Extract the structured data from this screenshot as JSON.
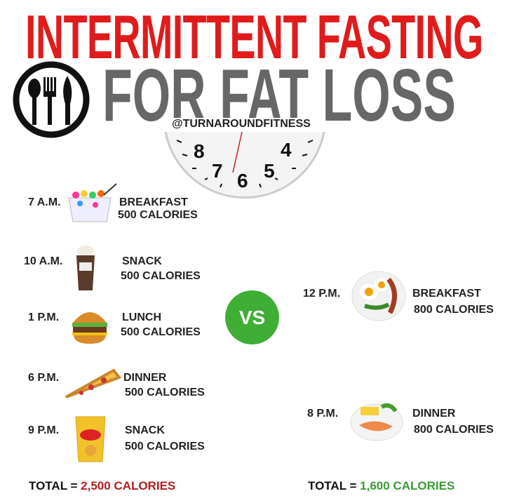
{
  "header": {
    "title_line1": "INTERMITTENT FASTING",
    "title_line2": "FOR FAT LOSS",
    "handle": "@TURNAROUNDFITNESS"
  },
  "clock": {
    "numbers": [
      "8",
      "4",
      "7",
      "6",
      "5"
    ]
  },
  "left_plan": {
    "meals": [
      {
        "time": "7 A.M.",
        "meal": "BREAKFAST",
        "calories": "500 CALORIES",
        "icon": "cereal-bowl-icon"
      },
      {
        "time": "10 A.M.",
        "meal": "SNACK",
        "calories": "500 CALORIES",
        "icon": "iced-coffee-icon"
      },
      {
        "time": "1 P.M.",
        "meal": "LUNCH",
        "calories": "500 CALORIES",
        "icon": "burger-icon"
      },
      {
        "time": "6 P.M.",
        "meal": "DINNER",
        "calories": "500 CALORIES",
        "icon": "pizza-slice-icon"
      },
      {
        "time": "9 P.M.",
        "meal": "SNACK",
        "calories": "500 CALORIES",
        "icon": "chips-bag-icon"
      }
    ],
    "total_label": "TOTAL = ",
    "total_value": "2,500 CALORIES",
    "total_color": "#b01e1e"
  },
  "vs_label": "VS",
  "right_plan": {
    "meals": [
      {
        "time": "12 P.M.",
        "meal": "BREAKFAST",
        "calories": "800 CALORIES",
        "icon": "eggs-bacon-icon"
      },
      {
        "time": "8 P.M.",
        "meal": "DINNER",
        "calories": "800 CALORIES",
        "icon": "salmon-plate-icon"
      }
    ],
    "total_label": "TOTAL = ",
    "total_value": "1,600 CALORIES",
    "total_color": "#3a9a34"
  },
  "colors": {
    "title_red": "#e01b1b",
    "title_gray": "#676767",
    "vs_green": "#3eae35"
  }
}
